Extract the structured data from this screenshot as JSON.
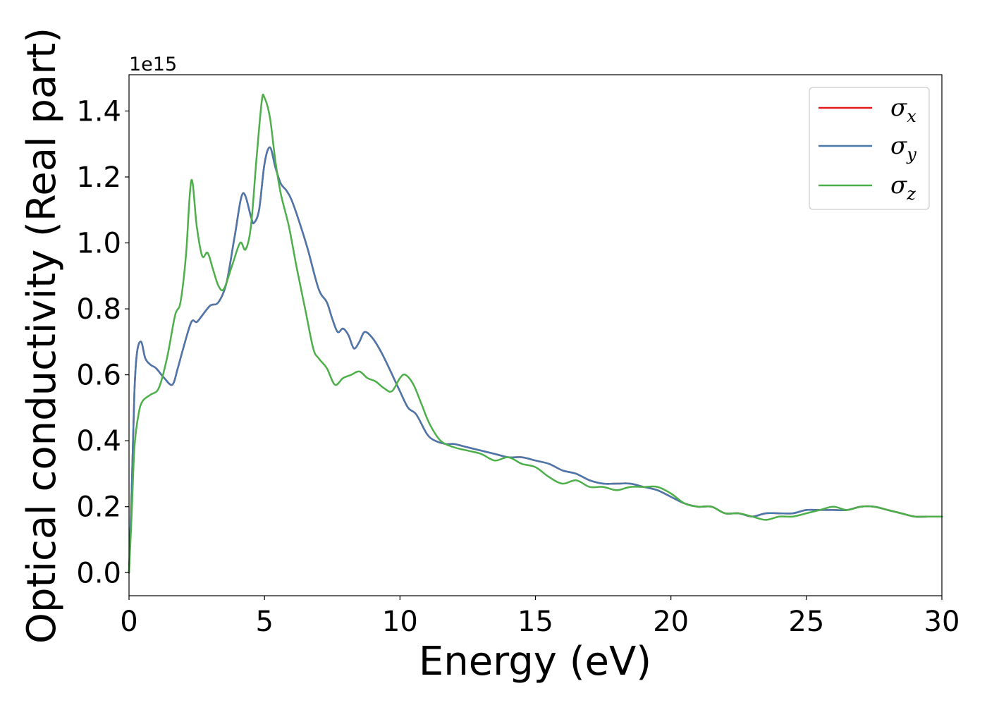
{
  "chart_data": {
    "type": "line",
    "title": "",
    "xlabel": "Energy (eV)",
    "ylabel": "Optical conductivity (Real part)",
    "y_offset_label": "1e15",
    "xlim": [
      0,
      30
    ],
    "ylim": [
      -0.07,
      1.51
    ],
    "x_ticks": [
      0,
      5,
      10,
      15,
      20,
      25,
      30
    ],
    "x_tick_labels": [
      "0",
      "5",
      "10",
      "15",
      "20",
      "25",
      "30"
    ],
    "y_ticks": [
      0.0,
      0.2,
      0.4,
      0.6,
      0.8,
      1.0,
      1.2,
      1.4
    ],
    "y_tick_labels": [
      "0.0",
      "0.2",
      "0.4",
      "0.6",
      "0.8",
      "1.0",
      "1.2",
      "1.4"
    ],
    "grid": false,
    "legend_position": "top-right",
    "series": [
      {
        "name": "σx",
        "legend_main": "σ",
        "legend_sub": "x",
        "color": "#e41a1c",
        "x": [
          0,
          0.1,
          0.2,
          0.3,
          0.45,
          0.6,
          0.8,
          1.0,
          1.3,
          1.6,
          1.8,
          2.0,
          2.3,
          2.5,
          2.7,
          3.0,
          3.3,
          3.6,
          3.9,
          4.2,
          4.5,
          4.6,
          4.8,
          5.0,
          5.2,
          5.4,
          5.6,
          5.8,
          6.0,
          6.3,
          6.6,
          7.0,
          7.3,
          7.5,
          7.7,
          7.9,
          8.1,
          8.3,
          8.5,
          8.7,
          9.0,
          9.3,
          9.6,
          10.0,
          10.3,
          10.6,
          11.0,
          11.3,
          11.7,
          12.0,
          12.5,
          13.0,
          13.5,
          14.0,
          14.5,
          15.0,
          15.5,
          16.0,
          16.5,
          17.0,
          17.5,
          18.0,
          18.5,
          19.0,
          19.5,
          20.0,
          20.5,
          21.0,
          21.5,
          22.0,
          22.5,
          23.0,
          23.5,
          24.0,
          24.5,
          25.0,
          25.5,
          26.0,
          26.5,
          27.0,
          27.5,
          28.0,
          28.5,
          29.0,
          29.5,
          30.0
        ],
        "y": [
          0.0,
          0.25,
          0.55,
          0.67,
          0.7,
          0.65,
          0.63,
          0.62,
          0.59,
          0.57,
          0.62,
          0.68,
          0.76,
          0.76,
          0.78,
          0.81,
          0.82,
          0.88,
          1.02,
          1.15,
          1.08,
          1.06,
          1.1,
          1.24,
          1.29,
          1.23,
          1.18,
          1.16,
          1.13,
          1.06,
          0.98,
          0.86,
          0.82,
          0.77,
          0.73,
          0.74,
          0.72,
          0.68,
          0.7,
          0.73,
          0.71,
          0.67,
          0.62,
          0.55,
          0.5,
          0.48,
          0.42,
          0.4,
          0.39,
          0.39,
          0.38,
          0.37,
          0.36,
          0.35,
          0.35,
          0.34,
          0.33,
          0.31,
          0.3,
          0.28,
          0.27,
          0.27,
          0.27,
          0.26,
          0.25,
          0.23,
          0.21,
          0.2,
          0.2,
          0.18,
          0.18,
          0.17,
          0.18,
          0.18,
          0.18,
          0.19,
          0.19,
          0.19,
          0.19,
          0.2,
          0.2,
          0.19,
          0.18,
          0.17,
          0.17,
          0.17
        ]
      },
      {
        "name": "σy",
        "legend_main": "σ",
        "legend_sub": "y",
        "color": "#4a78ad",
        "x": [
          0,
          0.1,
          0.2,
          0.3,
          0.45,
          0.6,
          0.8,
          1.0,
          1.3,
          1.6,
          1.8,
          2.0,
          2.3,
          2.5,
          2.7,
          3.0,
          3.3,
          3.6,
          3.9,
          4.2,
          4.5,
          4.6,
          4.8,
          5.0,
          5.2,
          5.4,
          5.6,
          5.8,
          6.0,
          6.3,
          6.6,
          7.0,
          7.3,
          7.5,
          7.7,
          7.9,
          8.1,
          8.3,
          8.5,
          8.7,
          9.0,
          9.3,
          9.6,
          10.0,
          10.3,
          10.6,
          11.0,
          11.3,
          11.7,
          12.0,
          12.5,
          13.0,
          13.5,
          14.0,
          14.5,
          15.0,
          15.5,
          16.0,
          16.5,
          17.0,
          17.5,
          18.0,
          18.5,
          19.0,
          19.5,
          20.0,
          20.5,
          21.0,
          21.5,
          22.0,
          22.5,
          23.0,
          23.5,
          24.0,
          24.5,
          25.0,
          25.5,
          26.0,
          26.5,
          27.0,
          27.5,
          28.0,
          28.5,
          29.0,
          29.5,
          30.0
        ],
        "y": [
          0.0,
          0.25,
          0.55,
          0.67,
          0.7,
          0.65,
          0.63,
          0.62,
          0.59,
          0.57,
          0.62,
          0.68,
          0.76,
          0.76,
          0.78,
          0.81,
          0.82,
          0.88,
          1.02,
          1.15,
          1.08,
          1.06,
          1.1,
          1.24,
          1.29,
          1.23,
          1.18,
          1.16,
          1.13,
          1.06,
          0.98,
          0.86,
          0.82,
          0.77,
          0.73,
          0.74,
          0.72,
          0.68,
          0.7,
          0.73,
          0.71,
          0.67,
          0.62,
          0.55,
          0.5,
          0.48,
          0.42,
          0.4,
          0.39,
          0.39,
          0.38,
          0.37,
          0.36,
          0.35,
          0.35,
          0.34,
          0.33,
          0.31,
          0.3,
          0.28,
          0.27,
          0.27,
          0.27,
          0.26,
          0.25,
          0.23,
          0.21,
          0.2,
          0.2,
          0.18,
          0.18,
          0.17,
          0.18,
          0.18,
          0.18,
          0.19,
          0.19,
          0.19,
          0.19,
          0.2,
          0.2,
          0.19,
          0.18,
          0.17,
          0.17,
          0.17
        ]
      },
      {
        "name": "σz",
        "legend_main": "σ",
        "legend_sub": "z",
        "color": "#4daf4a",
        "x": [
          0,
          0.1,
          0.2,
          0.35,
          0.5,
          0.8,
          1.1,
          1.4,
          1.7,
          1.9,
          2.1,
          2.3,
          2.5,
          2.7,
          2.9,
          3.1,
          3.3,
          3.5,
          3.8,
          4.1,
          4.3,
          4.5,
          4.7,
          4.9,
          5.0,
          5.2,
          5.4,
          5.6,
          5.9,
          6.2,
          6.5,
          6.8,
          7.0,
          7.3,
          7.6,
          7.9,
          8.2,
          8.5,
          8.8,
          9.1,
          9.4,
          9.7,
          10.0,
          10.2,
          10.5,
          10.8,
          11.1,
          11.5,
          12.0,
          12.5,
          13.0,
          13.5,
          14.0,
          14.5,
          15.0,
          15.5,
          16.0,
          16.5,
          17.0,
          17.5,
          18.0,
          18.5,
          19.0,
          19.5,
          20.0,
          20.5,
          21.0,
          21.5,
          22.0,
          22.5,
          23.0,
          23.5,
          24.0,
          24.5,
          25.0,
          25.5,
          26.0,
          26.5,
          27.0,
          27.5,
          28.0,
          28.5,
          29.0,
          29.5,
          30.0
        ],
        "y": [
          0.0,
          0.18,
          0.38,
          0.48,
          0.52,
          0.54,
          0.56,
          0.65,
          0.78,
          0.82,
          0.96,
          1.19,
          1.05,
          0.96,
          0.97,
          0.92,
          0.87,
          0.86,
          0.93,
          1.0,
          0.98,
          1.05,
          1.25,
          1.43,
          1.44,
          1.38,
          1.25,
          1.15,
          1.05,
          0.92,
          0.8,
          0.68,
          0.65,
          0.62,
          0.57,
          0.59,
          0.6,
          0.61,
          0.59,
          0.58,
          0.56,
          0.55,
          0.59,
          0.6,
          0.57,
          0.51,
          0.45,
          0.4,
          0.38,
          0.37,
          0.36,
          0.34,
          0.35,
          0.33,
          0.32,
          0.29,
          0.27,
          0.28,
          0.26,
          0.26,
          0.25,
          0.26,
          0.26,
          0.26,
          0.24,
          0.21,
          0.2,
          0.2,
          0.18,
          0.18,
          0.17,
          0.16,
          0.17,
          0.17,
          0.18,
          0.19,
          0.2,
          0.19,
          0.2,
          0.2,
          0.19,
          0.18,
          0.17,
          0.17,
          0.17
        ]
      }
    ]
  }
}
